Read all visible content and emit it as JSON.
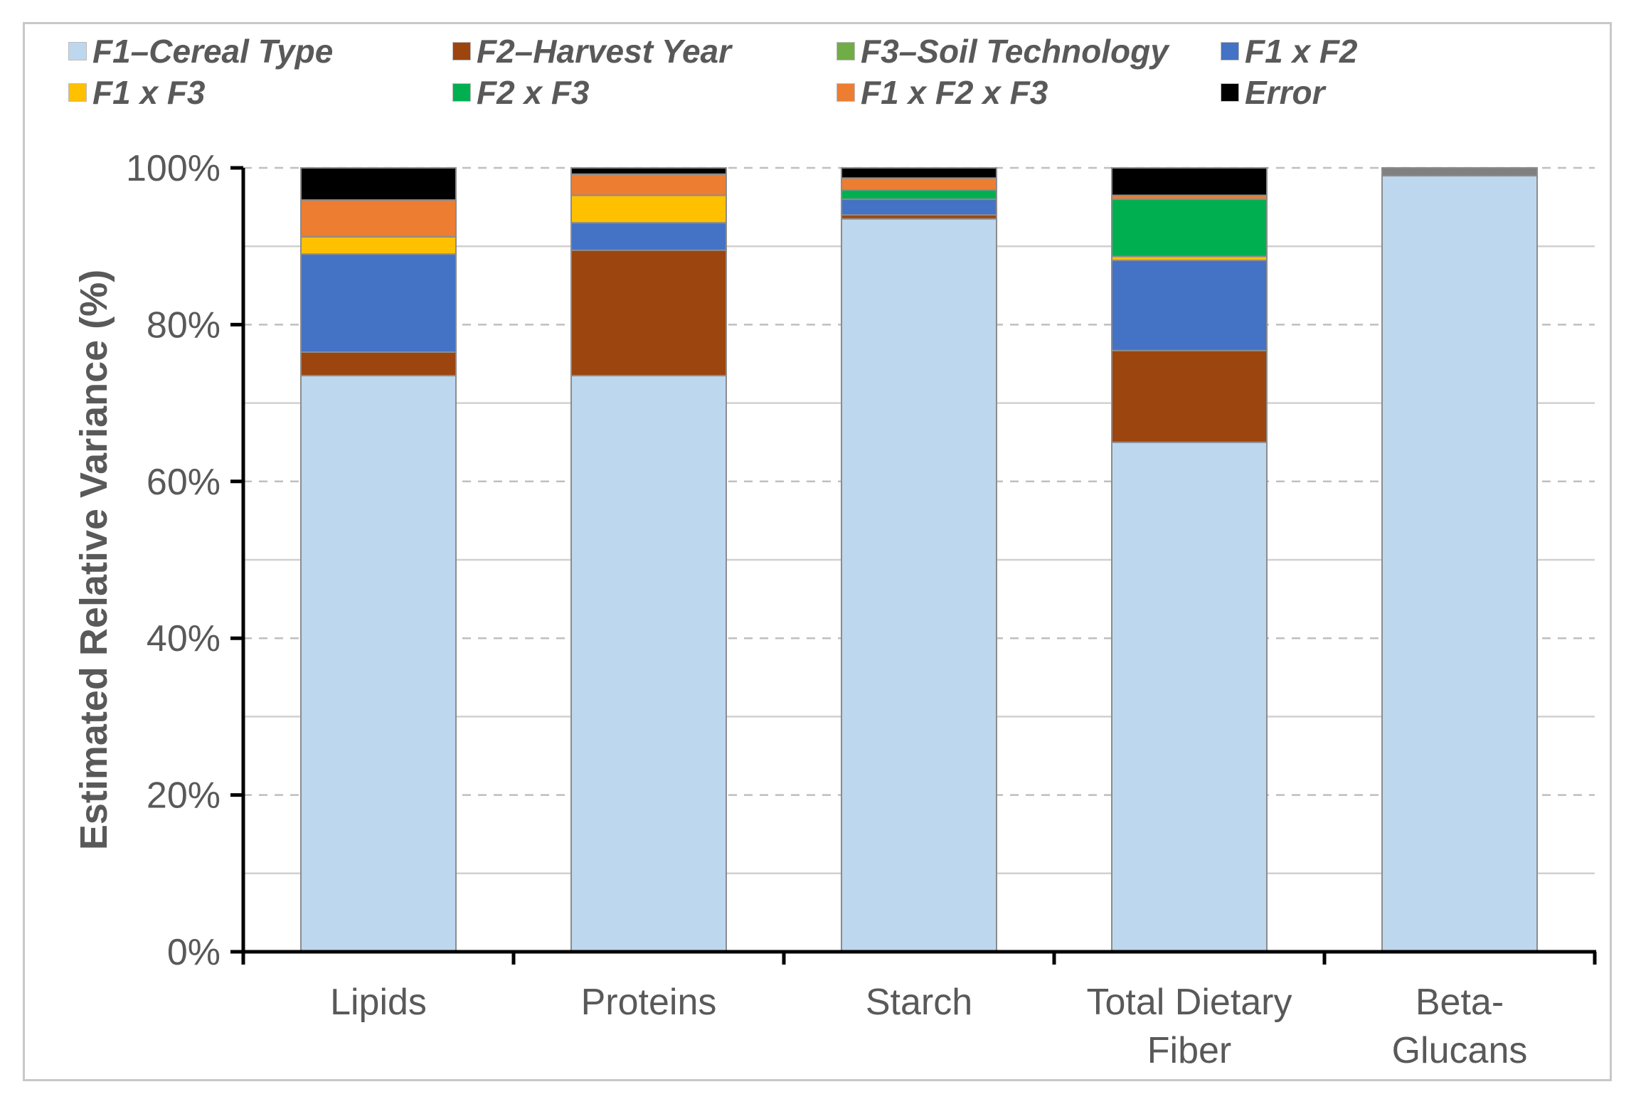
{
  "chart_data": {
    "type": "bar",
    "stacked": true,
    "ylabel": "Estimated Relative Variance (%)",
    "xlabel": "",
    "ylim": [
      0,
      100
    ],
    "y_ticks": [
      "0%",
      "20%",
      "40%",
      "60%",
      "80%",
      "100%"
    ],
    "grid": true,
    "legend_position": "top",
    "categories": [
      [
        "Lipids"
      ],
      [
        "Proteins"
      ],
      [
        "Starch"
      ],
      [
        "Total Dietary",
        "Fiber"
      ],
      [
        "Beta-",
        "Glucans"
      ]
    ],
    "series": [
      {
        "name": "F1–Cereal Type",
        "color": "#bdd7ee",
        "values": [
          73.5,
          73.5,
          93.5,
          65.0,
          99.0
        ]
      },
      {
        "name": "F2–Harvest Year",
        "color": "#9c450e",
        "values": [
          3.0,
          16.0,
          0.5,
          11.7,
          0.0
        ]
      },
      {
        "name": "F3–Soil Technology",
        "color": "#70ad47",
        "values": [
          0.0,
          0.0,
          0.0,
          0.0,
          0.0
        ]
      },
      {
        "name": "F1 x F2",
        "color": "#4472c4",
        "values": [
          12.5,
          3.5,
          2.0,
          11.5,
          0.0
        ]
      },
      {
        "name": "F1 x F3",
        "color": "#ffc000",
        "values": [
          2.2,
          3.5,
          0.0,
          0.5,
          0.0
        ]
      },
      {
        "name": "F2 x F3",
        "color": "#00b050",
        "values": [
          0.0,
          0.0,
          1.2,
          7.3,
          0.0
        ]
      },
      {
        "name": "F1 x F2 x F3",
        "color": "#ed7d31",
        "values": [
          4.7,
          2.7,
          1.5,
          0.5,
          0.0
        ]
      },
      {
        "name": "Error",
        "color": "#000000",
        "values": [
          4.1,
          0.8,
          1.3,
          3.5,
          1.0
        ]
      }
    ],
    "error_color_last_category": "#808080"
  }
}
